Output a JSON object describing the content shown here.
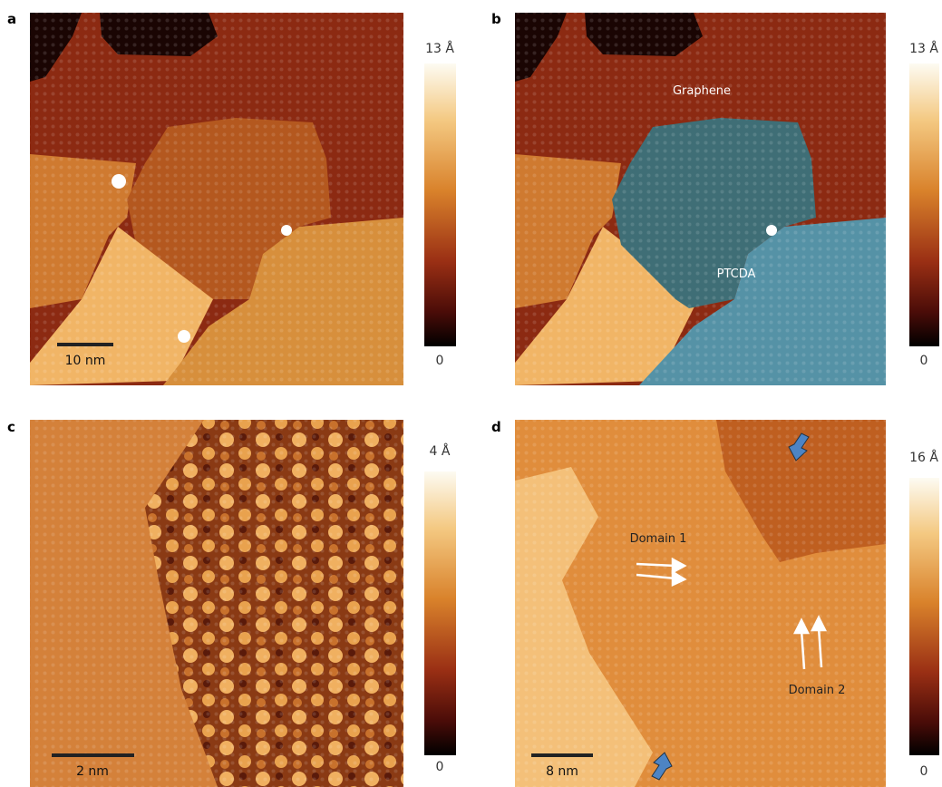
{
  "panels": [
    {
      "label": "a",
      "scale_bar": "10 nm",
      "colorbar": {
        "max": "13 Å",
        "min": "0"
      },
      "annotations": []
    },
    {
      "label": "b",
      "scale_bar": null,
      "colorbar": {
        "max": "13 Å",
        "min": "0"
      },
      "annotations": [
        "Graphene",
        "PTCDA"
      ]
    },
    {
      "label": "c",
      "scale_bar": "2 nm",
      "colorbar": {
        "max": "4 Å",
        "min": "0"
      },
      "annotations": []
    },
    {
      "label": "d",
      "scale_bar": "8 nm",
      "colorbar": {
        "max": "16 Å",
        "min": "0"
      },
      "annotations": [
        "Domain 1",
        "Domain 2"
      ]
    }
  ]
}
